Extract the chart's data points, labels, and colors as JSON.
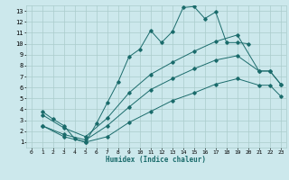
{
  "xlabel": "Humidex (Indice chaleur)",
  "bg_color": "#cce8ec",
  "grid_color": "#aacccc",
  "line_color": "#1a6b6b",
  "xlim": [
    -0.5,
    23.5
  ],
  "ylim": [
    0.5,
    13.5
  ],
  "xticks": [
    0,
    1,
    2,
    3,
    4,
    5,
    6,
    7,
    8,
    9,
    10,
    11,
    12,
    13,
    14,
    15,
    16,
    17,
    18,
    19,
    20,
    21,
    22,
    23
  ],
  "yticks": [
    1,
    2,
    3,
    4,
    5,
    6,
    7,
    8,
    9,
    10,
    11,
    12,
    13
  ],
  "line1_x": [
    1,
    2,
    3,
    4,
    5,
    6,
    7,
    8,
    9,
    10,
    11,
    12,
    13,
    14,
    15,
    16,
    17,
    18,
    19,
    20
  ],
  "line1_y": [
    3.8,
    3.1,
    2.5,
    1.3,
    1.0,
    2.7,
    4.6,
    6.5,
    8.8,
    9.5,
    11.2,
    10.1,
    11.1,
    13.3,
    13.4,
    12.3,
    12.9,
    10.1,
    10.1,
    10.0
  ],
  "line2_x": [
    1,
    3,
    5,
    7,
    9,
    11,
    13,
    15,
    17,
    19,
    21,
    22,
    23
  ],
  "line2_y": [
    3.5,
    2.3,
    1.5,
    3.2,
    5.5,
    7.2,
    8.3,
    9.3,
    10.2,
    10.8,
    7.5,
    7.5,
    6.3
  ],
  "line3_x": [
    1,
    3,
    5,
    7,
    9,
    11,
    13,
    15,
    17,
    19,
    21,
    22,
    23
  ],
  "line3_y": [
    2.5,
    1.7,
    1.2,
    2.5,
    4.2,
    5.8,
    6.8,
    7.7,
    8.5,
    8.9,
    7.5,
    7.5,
    6.3
  ],
  "line4_x": [
    1,
    3,
    5,
    7,
    9,
    11,
    13,
    15,
    17,
    19,
    21,
    22,
    23
  ],
  "line4_y": [
    2.5,
    1.5,
    1.0,
    1.5,
    2.8,
    3.8,
    4.8,
    5.5,
    6.3,
    6.8,
    6.2,
    6.2,
    5.2
  ]
}
